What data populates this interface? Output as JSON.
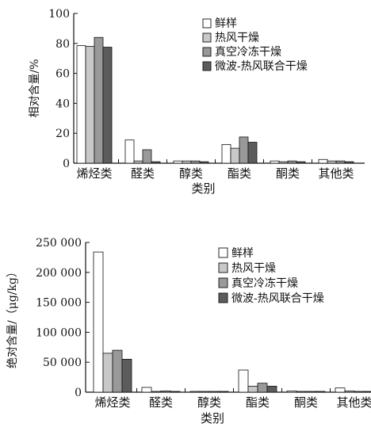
{
  "chart_data": [
    {
      "type": "bar",
      "ylabel": "相对含量/%",
      "xlabel": "类别",
      "ylim": [
        0,
        100
      ],
      "yticks": [
        0,
        20,
        40,
        60,
        80,
        100
      ],
      "ytick_labels": [
        "0",
        "20",
        "40",
        "60",
        "80",
        "100"
      ],
      "categories": [
        "烯烃类",
        "醛类",
        "醇类",
        "酯类",
        "酮类",
        "其他类"
      ],
      "legend_position": "top-right",
      "grid": false,
      "series": [
        {
          "name": "鲜样",
          "color": "#ffffff",
          "values": [
            78.5,
            15.5,
            1.5,
            12.5,
            1.5,
            2.5
          ]
        },
        {
          "name": "热风干燥",
          "color": "#c8c8c8",
          "values": [
            78.0,
            1.5,
            1.5,
            10.0,
            1.0,
            1.5
          ]
        },
        {
          "name": "真空冷冻干燥",
          "color": "#999999",
          "values": [
            84.0,
            9.0,
            1.5,
            17.5,
            1.5,
            1.5
          ]
        },
        {
          "name": "微波-热风联合干燥",
          "color": "#5c5c5c",
          "values": [
            77.5,
            1.0,
            1.0,
            14.0,
            1.0,
            1.0
          ]
        }
      ]
    },
    {
      "type": "bar",
      "ylabel": "绝对含量/（μg/kg）",
      "xlabel": "类别",
      "ylim": [
        0,
        250000
      ],
      "yticks": [
        0,
        50000,
        100000,
        150000,
        200000,
        250000
      ],
      "ytick_labels": [
        "0",
        "50 000",
        "100 000",
        "150 000",
        "200 000",
        "250 000"
      ],
      "categories": [
        "烯烃类",
        "醛类",
        "醇类",
        "酯类",
        "酮类",
        "其他类"
      ],
      "legend_position": "top-right",
      "grid": false,
      "series": [
        {
          "name": "鲜样",
          "color": "#ffffff",
          "values": [
            234000,
            8000,
            1000,
            37000,
            2000,
            7000
          ]
        },
        {
          "name": "热风干燥",
          "color": "#c8c8c8",
          "values": [
            65000,
            1000,
            1000,
            10000,
            1000,
            2000
          ]
        },
        {
          "name": "真空冷冻干燥",
          "color": "#999999",
          "values": [
            70000,
            2000,
            1000,
            15000,
            1000,
            1000
          ]
        },
        {
          "name": "微波-热风联合干燥",
          "color": "#5c5c5c",
          "values": [
            55000,
            1000,
            1000,
            10000,
            1000,
            1000
          ]
        }
      ]
    }
  ]
}
